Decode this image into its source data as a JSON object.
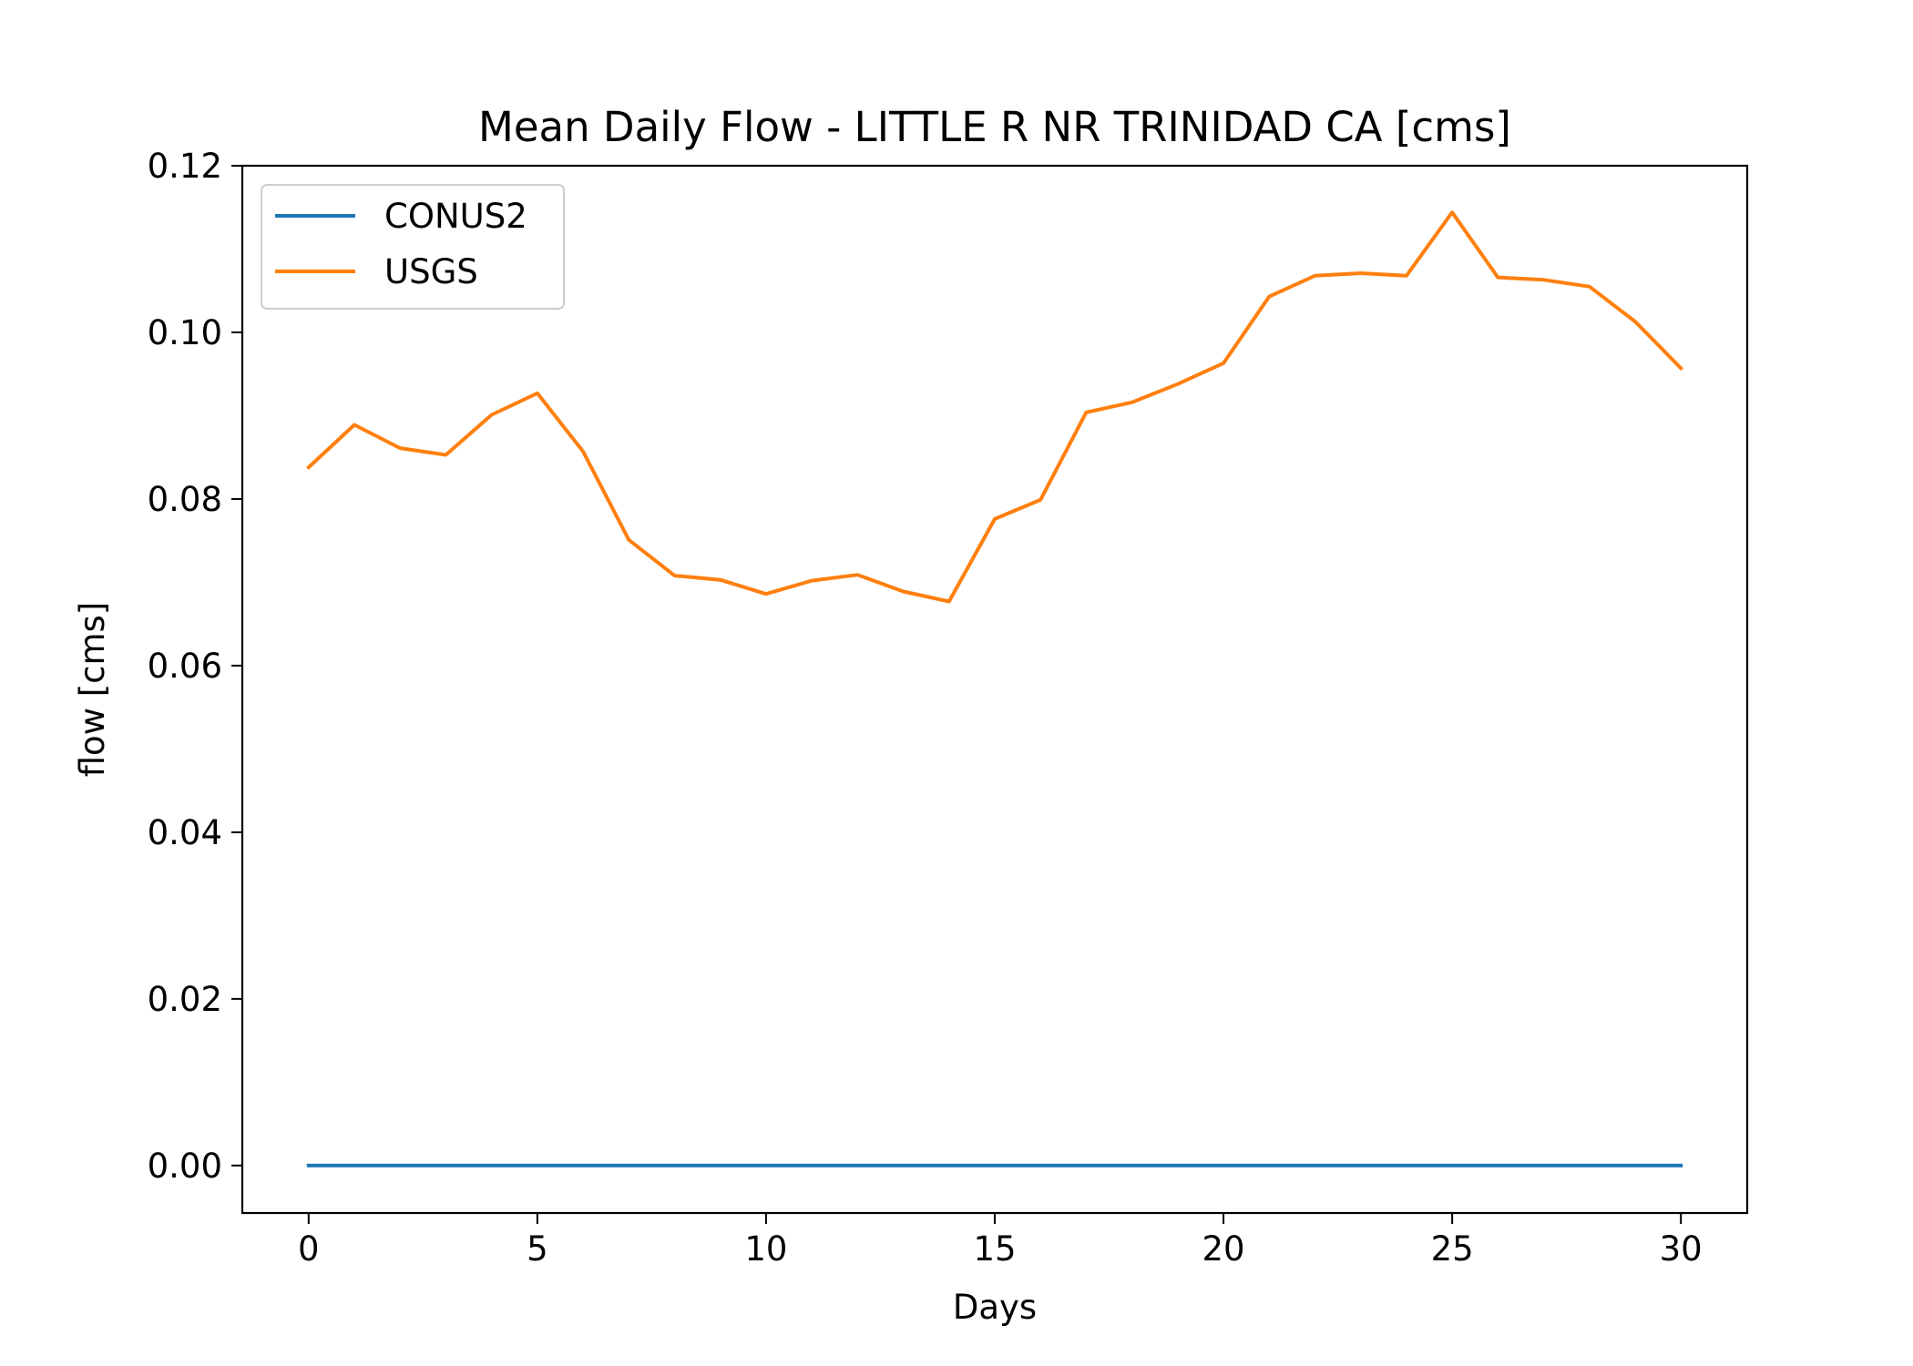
{
  "chart_data": {
    "type": "line",
    "title": "Mean Daily Flow - LITTLE R NR TRINIDAD CA [cms]",
    "xlabel": "Days",
    "ylabel": "flow [cms]",
    "xlim": [
      -1.45,
      31.45
    ],
    "ylim": [
      -0.0057,
      0.12
    ],
    "xticks": [
      0,
      5,
      10,
      15,
      20,
      25,
      30
    ],
    "xtick_labels": [
      "0",
      "5",
      "10",
      "15",
      "20",
      "25",
      "30"
    ],
    "yticks": [
      0.0,
      0.02,
      0.04,
      0.06,
      0.08,
      0.1,
      0.12
    ],
    "ytick_labels": [
      "0.00",
      "0.02",
      "0.04",
      "0.06",
      "0.08",
      "0.10",
      "0.12"
    ],
    "grid": false,
    "legend": {
      "placement": "top-left"
    },
    "x": [
      0,
      1,
      2,
      3,
      4,
      5,
      6,
      7,
      8,
      9,
      10,
      11,
      12,
      13,
      14,
      15,
      16,
      17,
      18,
      19,
      20,
      21,
      22,
      23,
      24,
      25,
      26,
      27,
      28,
      29,
      30
    ],
    "series": [
      {
        "name": "CONUS2",
        "color": "#1f77b4",
        "values": [
          0,
          0,
          0,
          0,
          0,
          0,
          0,
          0,
          0,
          0,
          0,
          0,
          0,
          0,
          0,
          0,
          0,
          0,
          0,
          0,
          0,
          0,
          0,
          0,
          0,
          0,
          0,
          0,
          0,
          0,
          0
        ]
      },
      {
        "name": "USGS",
        "color": "#ff7f0e",
        "values": [
          0.0838,
          0.0889,
          0.0861,
          0.0853,
          0.0901,
          0.0927,
          0.0857,
          0.0751,
          0.0708,
          0.0703,
          0.0686,
          0.0702,
          0.0709,
          0.0689,
          0.0677,
          0.0776,
          0.0799,
          0.0904,
          0.0916,
          0.0938,
          0.0963,
          0.1043,
          0.1068,
          0.1071,
          0.1068,
          0.1144,
          0.1066,
          0.1063,
          0.1055,
          0.1013,
          0.0957
        ]
      }
    ]
  }
}
